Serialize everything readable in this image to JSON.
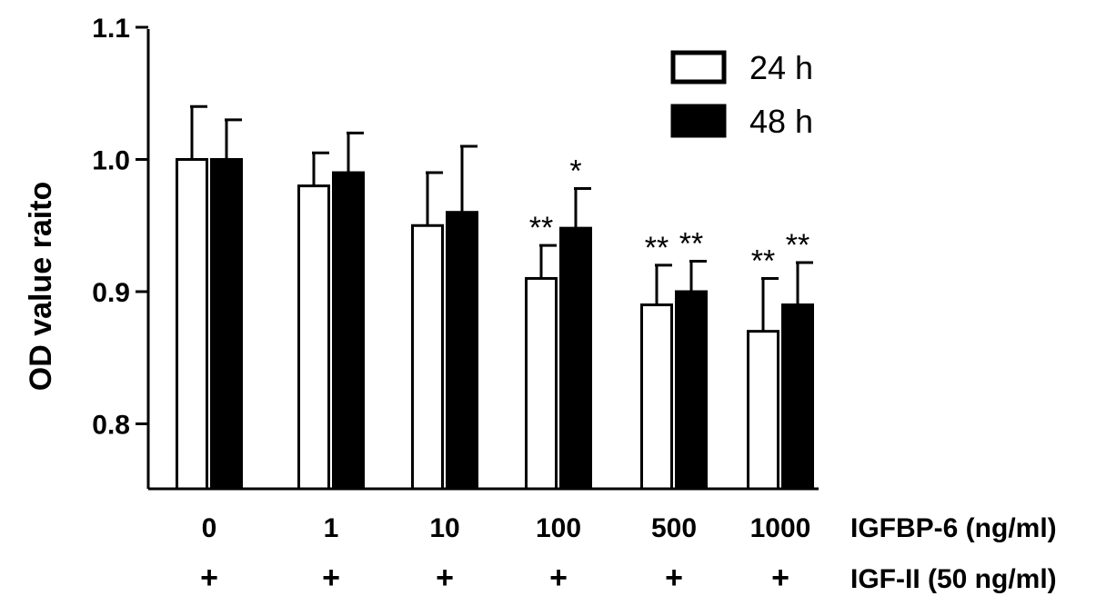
{
  "chart_data": {
    "type": "bar",
    "ylabel": "OD value raito",
    "ylim": [
      0.75,
      1.1
    ],
    "yticks": [
      "0.8",
      "0.9",
      "1.0",
      "1.1"
    ],
    "ytick_values": [
      0.8,
      0.9,
      1.0,
      1.1
    ],
    "categories": [
      "0",
      "1",
      "10",
      "100",
      "500",
      "1000"
    ],
    "row_labels": [
      "IGFBP-6 (ng/ml)",
      "IGF-II (50 ng/ml)"
    ],
    "igf_ii_marks": [
      "+",
      "+",
      "+",
      "+",
      "+",
      "+"
    ],
    "series": [
      {
        "name": "24 h",
        "fill": "#ffffff",
        "values": [
          1.0,
          0.98,
          0.95,
          0.91,
          0.89,
          0.87
        ],
        "errors": [
          0.04,
          0.025,
          0.04,
          0.025,
          0.03,
          0.04
        ],
        "significance": [
          "",
          "",
          "",
          "**",
          "**",
          "**"
        ]
      },
      {
        "name": "48 h",
        "fill": "#000000",
        "values": [
          1.0,
          0.99,
          0.96,
          0.948,
          0.9,
          0.89
        ],
        "errors": [
          0.03,
          0.03,
          0.05,
          0.03,
          0.023,
          0.032
        ],
        "significance": [
          "",
          "",
          "",
          "*",
          "**",
          "**"
        ]
      }
    ],
    "legend_position": "top-right",
    "grid": false
  }
}
